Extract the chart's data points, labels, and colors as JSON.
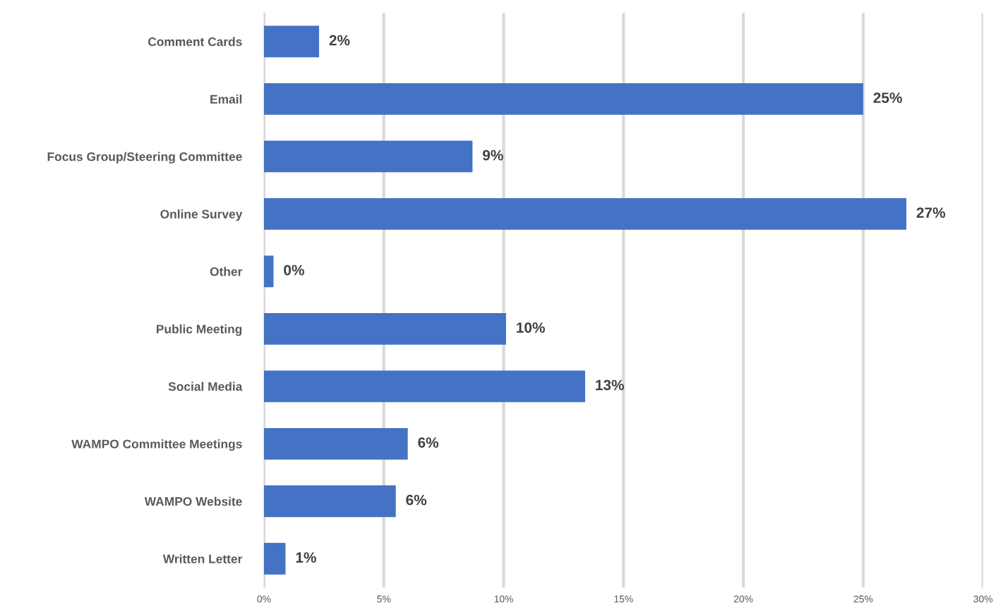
{
  "chart_data": {
    "type": "bar",
    "orientation": "horizontal",
    "categories": [
      "Comment Cards",
      "Email",
      "Focus Group/Steering Committee",
      "Online Survey",
      "Other",
      "Public Meeting",
      "Social Media",
      "WAMPO Committee Meetings",
      "WAMPO Website",
      "Written Letter"
    ],
    "values": [
      2.3,
      25.0,
      8.7,
      26.8,
      0.4,
      10.1,
      13.4,
      6.0,
      5.5,
      0.9
    ],
    "value_labels": [
      "2%",
      "25%",
      "9%",
      "27%",
      "0%",
      "10%",
      "13%",
      "6%",
      "6%",
      "1%"
    ],
    "color": "#4472c4",
    "xlim": [
      0,
      30
    ],
    "xticks": [
      {
        "value": 0,
        "label": "0%"
      },
      {
        "value": 5,
        "label": "5%"
      },
      {
        "value": 10,
        "label": "10%"
      },
      {
        "value": 15,
        "label": "15%"
      },
      {
        "value": 20,
        "label": "20%"
      },
      {
        "value": 25,
        "label": "25%"
      },
      {
        "value": 30,
        "label": "30%"
      }
    ],
    "grid": "x"
  }
}
